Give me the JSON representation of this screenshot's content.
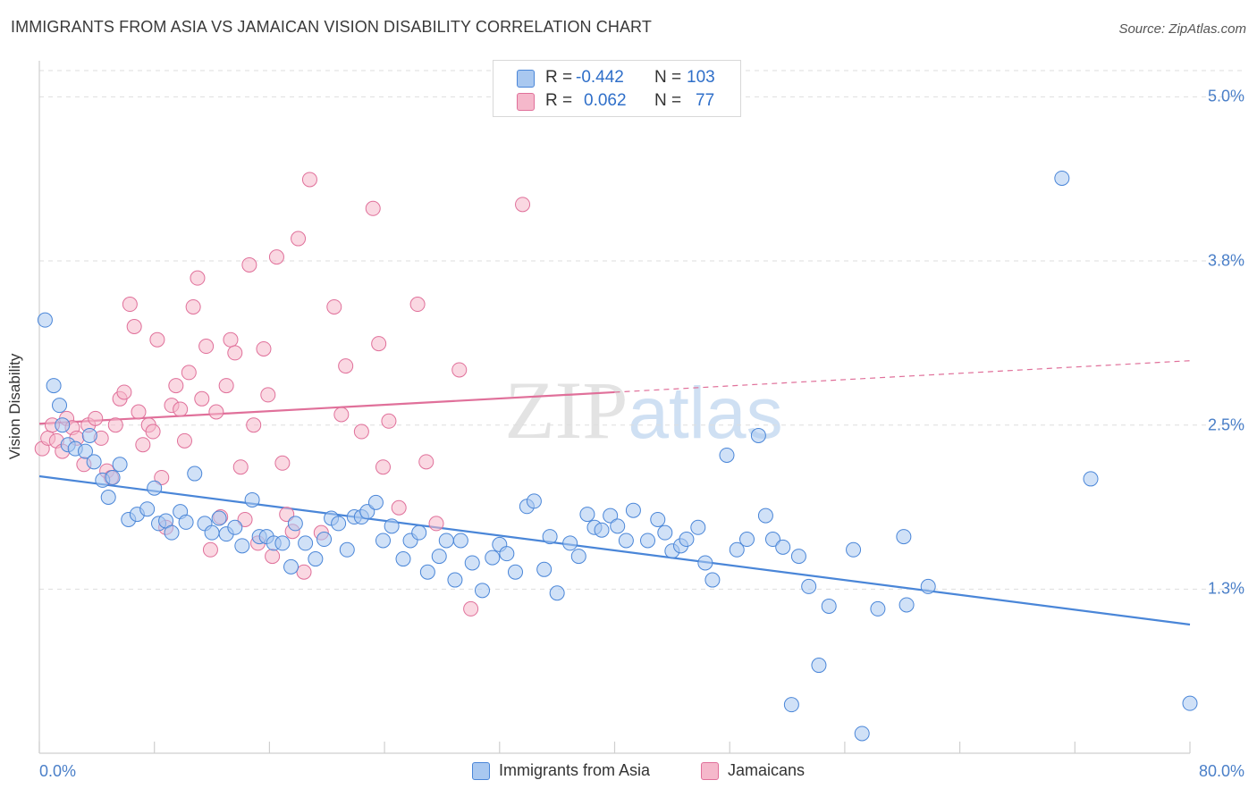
{
  "chart_data": {
    "type": "scatter",
    "title": "IMMIGRANTS FROM ASIA VS JAMAICAN VISION DISABILITY CORRELATION CHART",
    "source": "Source: ZipAtlas.com",
    "ylabel": "Vision Disability",
    "xlim": [
      0,
      80
    ],
    "ylim": [
      0,
      5.2
    ],
    "x_tick_labels": [
      "0.0%",
      "80.0%"
    ],
    "y_ticks": [
      {
        "value": 5.0,
        "label": "5.0%"
      },
      {
        "value": 3.75,
        "label": "3.8%"
      },
      {
        "value": 2.5,
        "label": "2.5%"
      },
      {
        "value": 1.25,
        "label": "1.3%"
      }
    ],
    "grid": true,
    "legend_position": "top-center",
    "watermark": "ZIPatlas",
    "colors": {
      "blue": "#4a86d8",
      "blue_fill": "#a9c8f0",
      "pink": "#e0709a",
      "pink_fill": "#f5b8cb"
    },
    "legend": {
      "r_label": "R =",
      "n_label": "N =",
      "entries": [
        {
          "r": "-0.442",
          "n": "103"
        },
        {
          "r": "0.062",
          "n": "77"
        }
      ]
    },
    "series": [
      {
        "name": "Immigrants from Asia",
        "color": "#4a86d8",
        "trend": {
          "x": [
            0,
            80
          ],
          "y": [
            2.11,
            0.98
          ],
          "style": "solid"
        },
        "points": [
          [
            0.4,
            3.3
          ],
          [
            1.0,
            2.8
          ],
          [
            1.4,
            2.65
          ],
          [
            1.6,
            2.5
          ],
          [
            2.0,
            2.35
          ],
          [
            2.5,
            2.32
          ],
          [
            3.2,
            2.3
          ],
          [
            3.5,
            2.42
          ],
          [
            3.8,
            2.22
          ],
          [
            4.4,
            2.08
          ],
          [
            4.8,
            1.95
          ],
          [
            5.1,
            2.1
          ],
          [
            5.6,
            2.2
          ],
          [
            6.2,
            1.78
          ],
          [
            6.8,
            1.82
          ],
          [
            7.5,
            1.86
          ],
          [
            8.0,
            2.02
          ],
          [
            8.3,
            1.75
          ],
          [
            8.8,
            1.77
          ],
          [
            9.2,
            1.68
          ],
          [
            9.8,
            1.84
          ],
          [
            10.2,
            1.76
          ],
          [
            10.8,
            2.13
          ],
          [
            11.5,
            1.75
          ],
          [
            12.0,
            1.68
          ],
          [
            12.5,
            1.79
          ],
          [
            13.0,
            1.67
          ],
          [
            13.6,
            1.72
          ],
          [
            14.1,
            1.58
          ],
          [
            14.8,
            1.93
          ],
          [
            15.3,
            1.65
          ],
          [
            15.8,
            1.65
          ],
          [
            16.3,
            1.6
          ],
          [
            16.9,
            1.6
          ],
          [
            17.5,
            1.42
          ],
          [
            17.8,
            1.75
          ],
          [
            18.5,
            1.6
          ],
          [
            19.2,
            1.48
          ],
          [
            19.8,
            1.63
          ],
          [
            20.3,
            1.79
          ],
          [
            20.8,
            1.75
          ],
          [
            21.4,
            1.55
          ],
          [
            21.9,
            1.8
          ],
          [
            22.4,
            1.8
          ],
          [
            22.8,
            1.84
          ],
          [
            23.4,
            1.91
          ],
          [
            23.9,
            1.62
          ],
          [
            24.5,
            1.73
          ],
          [
            25.3,
            1.48
          ],
          [
            25.8,
            1.62
          ],
          [
            26.4,
            1.68
          ],
          [
            27.0,
            1.38
          ],
          [
            27.8,
            1.5
          ],
          [
            28.3,
            1.62
          ],
          [
            28.9,
            1.32
          ],
          [
            29.3,
            1.62
          ],
          [
            30.1,
            1.45
          ],
          [
            30.8,
            1.24
          ],
          [
            31.5,
            1.49
          ],
          [
            32.0,
            1.59
          ],
          [
            32.5,
            1.52
          ],
          [
            33.1,
            1.38
          ],
          [
            33.9,
            1.88
          ],
          [
            34.4,
            1.92
          ],
          [
            35.1,
            1.4
          ],
          [
            35.5,
            1.65
          ],
          [
            36.0,
            1.22
          ],
          [
            36.9,
            1.6
          ],
          [
            37.5,
            1.5
          ],
          [
            38.1,
            1.82
          ],
          [
            38.6,
            1.72
          ],
          [
            39.1,
            1.7
          ],
          [
            39.7,
            1.81
          ],
          [
            40.2,
            1.73
          ],
          [
            40.8,
            1.62
          ],
          [
            41.3,
            1.85
          ],
          [
            42.3,
            1.62
          ],
          [
            43.0,
            1.78
          ],
          [
            43.5,
            1.68
          ],
          [
            44.0,
            1.54
          ],
          [
            44.6,
            1.58
          ],
          [
            45.0,
            1.63
          ],
          [
            45.8,
            1.72
          ],
          [
            46.3,
            1.45
          ],
          [
            46.8,
            1.32
          ],
          [
            47.8,
            2.27
          ],
          [
            48.5,
            1.55
          ],
          [
            49.2,
            1.63
          ],
          [
            50.0,
            2.42
          ],
          [
            50.5,
            1.81
          ],
          [
            51.0,
            1.63
          ],
          [
            51.7,
            1.57
          ],
          [
            52.3,
            0.37
          ],
          [
            52.8,
            1.5
          ],
          [
            53.5,
            1.27
          ],
          [
            54.2,
            0.67
          ],
          [
            54.9,
            1.12
          ],
          [
            56.6,
            1.55
          ],
          [
            57.2,
            0.15
          ],
          [
            58.3,
            1.1
          ],
          [
            60.1,
            1.65
          ],
          [
            60.3,
            1.13
          ],
          [
            61.8,
            1.27
          ],
          [
            71.1,
            4.38
          ],
          [
            73.1,
            2.09
          ],
          [
            80.0,
            0.38
          ]
        ]
      },
      {
        "name": "Jamaicans",
        "color": "#e0709a",
        "trend": {
          "x": [
            0,
            40,
            80
          ],
          "y": [
            2.51,
            2.75,
            2.99
          ],
          "style": "solid-then-dashed"
        },
        "points": [
          [
            0.2,
            2.32
          ],
          [
            0.6,
            2.4
          ],
          [
            0.9,
            2.5
          ],
          [
            1.2,
            2.38
          ],
          [
            1.6,
            2.3
          ],
          [
            1.9,
            2.55
          ],
          [
            2.3,
            2.48
          ],
          [
            2.6,
            2.4
          ],
          [
            3.1,
            2.2
          ],
          [
            3.4,
            2.5
          ],
          [
            3.9,
            2.55
          ],
          [
            4.3,
            2.4
          ],
          [
            4.7,
            2.15
          ],
          [
            5.0,
            2.1
          ],
          [
            5.3,
            2.5
          ],
          [
            5.6,
            2.7
          ],
          [
            5.9,
            2.75
          ],
          [
            6.3,
            3.42
          ],
          [
            6.6,
            3.25
          ],
          [
            6.9,
            2.6
          ],
          [
            7.2,
            2.35
          ],
          [
            7.6,
            2.5
          ],
          [
            7.9,
            2.45
          ],
          [
            8.2,
            3.15
          ],
          [
            8.5,
            2.1
          ],
          [
            8.8,
            1.72
          ],
          [
            9.2,
            2.65
          ],
          [
            9.5,
            2.8
          ],
          [
            9.8,
            2.62
          ],
          [
            10.1,
            2.38
          ],
          [
            10.4,
            2.9
          ],
          [
            10.7,
            3.4
          ],
          [
            11.0,
            3.62
          ],
          [
            11.3,
            2.7
          ],
          [
            11.6,
            3.1
          ],
          [
            11.9,
            1.55
          ],
          [
            12.3,
            2.6
          ],
          [
            12.6,
            1.8
          ],
          [
            13.0,
            2.8
          ],
          [
            13.3,
            3.15
          ],
          [
            13.6,
            3.05
          ],
          [
            14.0,
            2.18
          ],
          [
            14.3,
            1.78
          ],
          [
            14.6,
            3.72
          ],
          [
            14.9,
            2.5
          ],
          [
            15.2,
            1.6
          ],
          [
            15.6,
            3.08
          ],
          [
            15.9,
            2.73
          ],
          [
            16.2,
            1.5
          ],
          [
            16.5,
            3.78
          ],
          [
            16.9,
            2.21
          ],
          [
            17.2,
            1.82
          ],
          [
            17.6,
            1.69
          ],
          [
            18.0,
            3.92
          ],
          [
            18.4,
            1.38
          ],
          [
            18.8,
            4.37
          ],
          [
            19.6,
            1.68
          ],
          [
            20.5,
            3.4
          ],
          [
            21.0,
            2.58
          ],
          [
            21.3,
            2.95
          ],
          [
            22.4,
            2.45
          ],
          [
            23.2,
            4.15
          ],
          [
            23.6,
            3.12
          ],
          [
            23.9,
            2.18
          ],
          [
            24.3,
            2.53
          ],
          [
            25.0,
            1.87
          ],
          [
            26.3,
            3.42
          ],
          [
            26.9,
            2.22
          ],
          [
            27.6,
            1.75
          ],
          [
            29.2,
            2.92
          ],
          [
            30.0,
            1.1
          ],
          [
            33.6,
            4.18
          ]
        ]
      }
    ]
  }
}
